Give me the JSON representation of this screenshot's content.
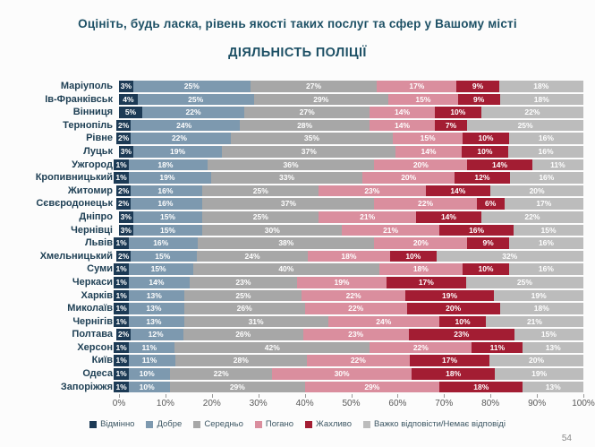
{
  "slide": {
    "title": "Оцініть, будь ласка, рівень якості таких послуг та сфер у Вашому місті",
    "subtitle": "ДІЯЛЬНІСТЬ ПОЛІЦІЇ",
    "page_number": "54"
  },
  "colors": {
    "title_text": "#1d5065",
    "city_label_text": "#1f4055",
    "axis_label_text": "#595959",
    "legend_text": "#3c5663",
    "background": "#fcfcfc"
  },
  "chart_data": {
    "type": "bar",
    "orientation": "horizontal-stacked",
    "title": "Оцініть, будь ласка, рівень якості таких послуг та сфер у Вашому місті",
    "subtitle": "ДІЯЛЬНІСТЬ ПОЛІЦІЇ",
    "value_suffix": "%",
    "xlim": [
      0,
      100
    ],
    "x_ticks": [
      "0%",
      "10%",
      "20%",
      "30%",
      "40%",
      "50%",
      "60%",
      "70%",
      "80%",
      "90%",
      "100%"
    ],
    "legend_position": "bottom",
    "categories": [
      "Маріуполь",
      "Ів-Франківськ",
      "Вінниця",
      "Тернопіль",
      "Рівне",
      "Луцьк",
      "Ужгород",
      "Кропивницький",
      "Житомир",
      "Сєвєродонецьк",
      "Дніпро",
      "Чернівці",
      "Львів",
      "Хмельницький",
      "Суми",
      "Черкаси",
      "Харків",
      "Миколаїв",
      "Чернігів",
      "Полтава",
      "Херсон",
      "Київ",
      "Одеса",
      "Запоріжжя"
    ],
    "series": [
      {
        "name": "Відмінно",
        "color": "#1c3a55",
        "values": [
          3,
          4,
          5,
          2,
          2,
          3,
          1,
          1,
          2,
          2,
          3,
          3,
          1,
          2,
          1,
          1,
          1,
          1,
          1,
          2,
          1,
          1,
          1,
          1
        ]
      },
      {
        "name": "Добре",
        "color": "#7d99af",
        "values": [
          25,
          25,
          22,
          24,
          22,
          19,
          18,
          19,
          16,
          16,
          15,
          15,
          16,
          15,
          15,
          14,
          13,
          13,
          13,
          12,
          11,
          11,
          10,
          10
        ]
      },
      {
        "name": "Середньо",
        "color": "#a7a7a7",
        "values": [
          27,
          29,
          27,
          28,
          35,
          37,
          36,
          33,
          25,
          37,
          25,
          30,
          38,
          24,
          40,
          23,
          25,
          26,
          31,
          26,
          42,
          28,
          22,
          29
        ]
      },
      {
        "name": "Погано",
        "color": "#da8e9e",
        "values": [
          17,
          15,
          14,
          14,
          15,
          14,
          20,
          20,
          23,
          22,
          21,
          21,
          20,
          18,
          18,
          19,
          22,
          22,
          24,
          23,
          22,
          22,
          30,
          29
        ]
      },
      {
        "name": "Жахливо",
        "color": "#a31d33",
        "values": [
          9,
          9,
          10,
          7,
          10,
          10,
          14,
          12,
          14,
          6,
          14,
          16,
          9,
          10,
          10,
          17,
          19,
          20,
          10,
          23,
          11,
          17,
          18,
          18
        ]
      },
      {
        "name": "Важко відповісти/Немає відповіді",
        "color": "#bcbcbc",
        "values": [
          18,
          18,
          22,
          25,
          16,
          16,
          11,
          16,
          20,
          17,
          22,
          15,
          16,
          32,
          16,
          25,
          19,
          18,
          21,
          15,
          13,
          20,
          19,
          13
        ]
      }
    ]
  }
}
